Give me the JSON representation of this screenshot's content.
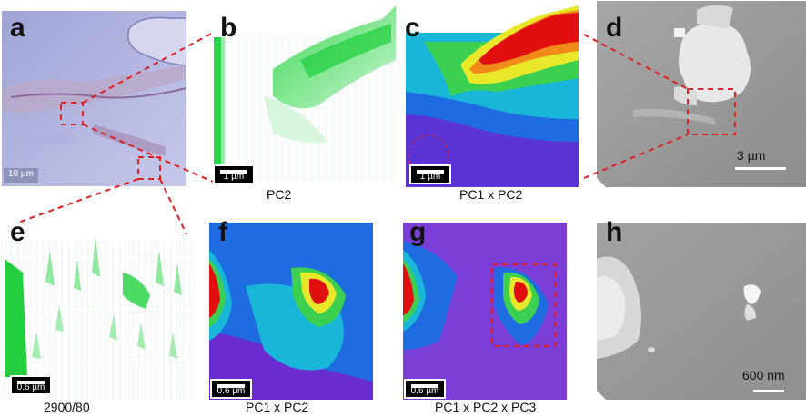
{
  "panels": {
    "a": {
      "letter": "a",
      "scalebar": "10 µm"
    },
    "b": {
      "letter": "b",
      "caption": "PC2",
      "scalebar": "1 µm"
    },
    "c": {
      "letter": "c",
      "caption": "PC1 x PC2",
      "scalebar": "1 µm"
    },
    "d": {
      "letter": "d",
      "scalebar": "3 µm"
    },
    "e": {
      "letter": "e",
      "caption": "2900/80",
      "scalebar": "0.6 µm"
    },
    "f": {
      "letter": "f",
      "caption": "PC1 x PC2",
      "scalebar": "0.6 µm"
    },
    "g": {
      "letter": "g",
      "caption": "PC1 x PC2 x PC3",
      "scalebar": "0.6 µm"
    },
    "h": {
      "letter": "h",
      "scalebar": "600 nm"
    }
  },
  "colors": {
    "link_dashes": "#e02020",
    "green_map": "#3ddc4a",
    "heat_high": "#e01010",
    "heat_low": "#6a2bd0"
  }
}
